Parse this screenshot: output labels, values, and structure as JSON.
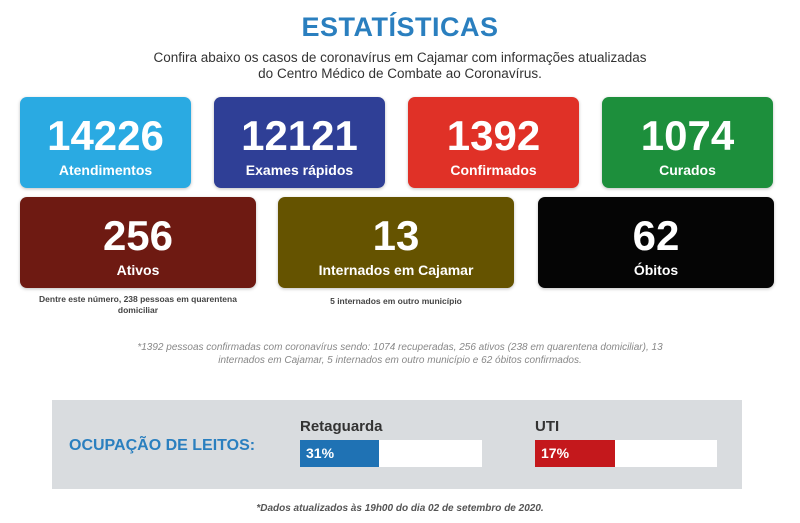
{
  "header": {
    "title": "ESTATÍSTICAS",
    "subtitle_line1": "Confira abaixo os casos de coronavírus em Cajamar com informações atualizadas",
    "subtitle_line2": "do Centro Médico de Combate ao Coronavírus."
  },
  "cards": {
    "atendimentos": {
      "value": "14226",
      "label": "Atendimentos",
      "color": "#2aaae2"
    },
    "exames": {
      "value": "12121",
      "label": "Exames rápidos",
      "color": "#2f3f96"
    },
    "confirmados": {
      "value": "1392",
      "label": "Confirmados",
      "color": "#e03127"
    },
    "curados": {
      "value": "1074",
      "label": "Curados",
      "color": "#1d8f3c"
    },
    "ativos": {
      "value": "256",
      "label": "Ativos",
      "color": "#6e1a12",
      "note_line1": "Dentre este número, 238 pessoas em quarentena",
      "note_line2": "domiciliar"
    },
    "internados": {
      "value": "13",
      "label": "Internados em Cajamar",
      "color": "#655300",
      "note": "5 internados em outro município"
    },
    "obitos": {
      "value": "62",
      "label": "Óbitos",
      "color": "#050505"
    }
  },
  "footnote": {
    "line1": "*1392 pessoas confirmadas com coronavírus sendo: 1074 recuperadas, 256 ativos (238 em quarentena domiciliar), 13",
    "line2": "internados em Cajamar, 5 internados em outro município e 62 óbitos confirmados."
  },
  "beds": {
    "title": "OCUPAÇÃO DE LEITOS:",
    "retaguarda": {
      "label": "Retaguarda",
      "percent_text": "31%",
      "percent": 31,
      "color": "#1f72b4"
    },
    "uti": {
      "label": "UTI",
      "percent_text": "17%",
      "percent": 17,
      "color": "#c4181c"
    }
  },
  "updated": "*Dados atualizados às 19h00 do dia 02 de setembro de 2020."
}
